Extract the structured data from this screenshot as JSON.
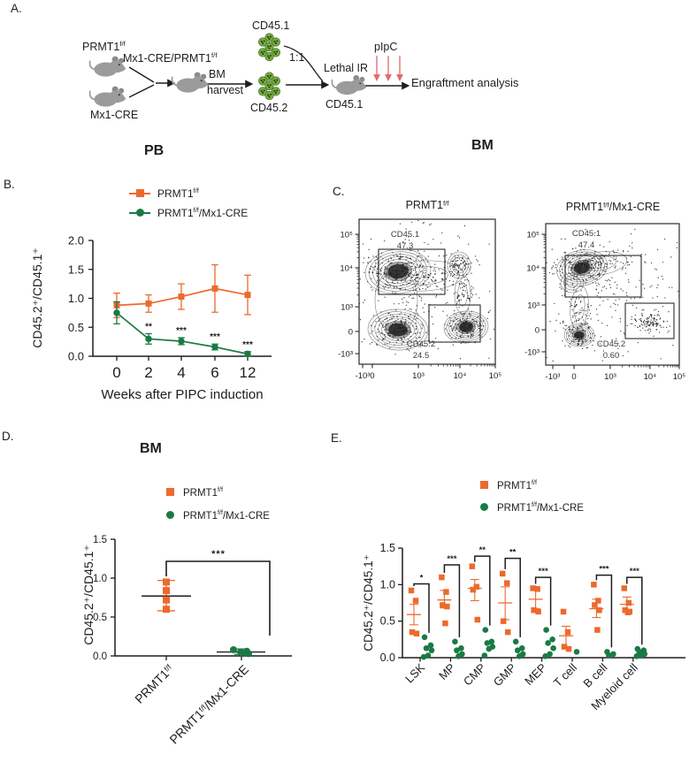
{
  "colors": {
    "orange": "#EB6A2D",
    "green": "#1A7A43",
    "arrow_red": "#DE6A6C",
    "mouse_gray": "#9B9B9B",
    "mouse_dark": "#8A8A8A",
    "cell_green": "#76AC41",
    "cell_outline": "#4C742B",
    "cell_dot": "#203B10",
    "text": "#1D1D1D"
  },
  "legend": {
    "group1": {
      "base": "PRMT1",
      "sup": "f/f",
      "rest": ""
    },
    "group2": {
      "base": "PRMT1",
      "sup": "f/f",
      "rest": "/Mx1-CRE"
    }
  },
  "panels": {
    "a": {
      "label": "A.",
      "donor_top": {
        "base": "PRMT1",
        "sup": "f/f"
      },
      "donor_bottom": "Mx1-CRE",
      "cross": {
        "base": "Mx1-CRE/PRMT1",
        "sup": "f/f"
      },
      "harvest_line1": "BM",
      "harvest_line2": "harvest",
      "cells_top": "CD45.1",
      "ratio": "1:1",
      "cells_bottom": "CD45.2",
      "irradiation": "Lethal IR",
      "recipient": "CD45.1",
      "induction": "pIpC",
      "endpoint": "Engraftment analysis"
    },
    "b": {
      "label": "B.",
      "title": "PB"
    },
    "c": {
      "label": "C.",
      "title": "BM"
    },
    "d": {
      "label": "D.",
      "title": "BM"
    },
    "e": {
      "label": "E."
    }
  },
  "chart_data": [
    {
      "id": "panel-b",
      "type": "line",
      "title": "PB",
      "xlabel": "Weeks after PIPC induction",
      "ylabel": "CD45.2⁺/CD45.1⁺",
      "categories": [
        "0",
        "2",
        "4",
        "6",
        "12"
      ],
      "ylim": [
        0,
        2.0
      ],
      "yticks": [
        "0.0",
        "0.5",
        "1.0",
        "1.5",
        "2.0"
      ],
      "legend_position": "top-left",
      "series": [
        {
          "legend_ref": "group1",
          "marker": "square",
          "color_key": "orange",
          "values": [
            0.88,
            0.91,
            1.03,
            1.17,
            1.06
          ],
          "errors": [
            0.21,
            0.15,
            0.22,
            0.41,
            0.34
          ],
          "sig": [
            "",
            "",
            "",
            "",
            ""
          ]
        },
        {
          "legend_ref": "group2",
          "marker": "circle",
          "color_key": "green",
          "values": [
            0.75,
            0.3,
            0.26,
            0.16,
            0.04
          ],
          "errors": [
            0.19,
            0.09,
            0.06,
            0.05,
            0.04
          ],
          "sig": [
            "",
            "**",
            "***",
            "***",
            "***"
          ]
        }
      ]
    },
    {
      "id": "panel-c",
      "type": "flow-contour",
      "title": "BM",
      "axis_ticks": {
        "x": [
          "-10³",
          "0",
          "10³",
          "10⁴",
          "10⁵"
        ],
        "y": [
          "-10³",
          "0",
          "10³",
          "10⁴",
          "10⁵"
        ]
      },
      "plots": [
        {
          "title_ref": "group1",
          "gates": [
            {
              "label": "CD45.1",
              "percent": "47.3"
            },
            {
              "label": "CD45.2",
              "percent": "24.5"
            }
          ]
        },
        {
          "title_ref": "group2",
          "gates": [
            {
              "label": "CD45.1",
              "percent": "47.4"
            },
            {
              "label": "CD45.2",
              "percent": "0.60"
            }
          ]
        }
      ]
    },
    {
      "id": "panel-d",
      "type": "scatter",
      "title": "BM",
      "ylabel": "CD45.2⁺/CD45.1⁺",
      "ylim": [
        0,
        1.5
      ],
      "yticks": [
        "0.0",
        "0.5",
        "1.0",
        "1.5"
      ],
      "groups": [
        {
          "legend_ref": "group1",
          "marker": "square",
          "color_key": "orange",
          "points": [
            0.95,
            0.84,
            0.72,
            0.6
          ],
          "mean": 0.77,
          "sd_low": 0.58,
          "sd_high": 0.97
        },
        {
          "legend_ref": "group2",
          "marker": "circle",
          "color_key": "green",
          "points": [
            0.08,
            0.06,
            0.05,
            0.03,
            0.04
          ],
          "mean": 0.05,
          "sd_low": 0.02,
          "sd_high": 0.09
        }
      ],
      "significance": {
        "label": "***"
      }
    },
    {
      "id": "panel-e",
      "type": "scatter",
      "ylabel": "CD45.2⁺/CD45.1⁺",
      "ylim": [
        0,
        1.5
      ],
      "yticks": [
        "0.0",
        "0.5",
        "1.0",
        "1.5"
      ],
      "categories": [
        "LSK",
        "MP",
        "CMP",
        "GMP",
        "MEP",
        "T cell",
        "B cell",
        "Myeloid cell"
      ],
      "series": [
        {
          "legend_ref": "group1",
          "marker": "square",
          "color_key": "orange",
          "points": [
            [
              0.92,
              0.78,
              0.35,
              0.33
            ],
            [
              1.1,
              0.9,
              0.72,
              0.7,
              0.47
            ],
            [
              1.25,
              0.97,
              0.93,
              0.52
            ],
            [
              1.15,
              1.02,
              0.5,
              0.35
            ],
            [
              0.95,
              0.94,
              0.65,
              0.63
            ],
            [
              0.63,
              0.35,
              0.15,
              0.12
            ],
            [
              1.0,
              0.78,
              0.72,
              0.65,
              0.38
            ],
            [
              0.95,
              0.75,
              0.65,
              0.63,
              0.62
            ]
          ],
          "means": [
            0.59,
            0.79,
            0.95,
            0.75,
            0.8,
            0.3,
            0.67,
            0.73
          ],
          "err_low": [
            0.45,
            0.68,
            0.78,
            0.52,
            0.67,
            0.15,
            0.55,
            0.62
          ],
          "err_high": [
            0.73,
            0.92,
            1.07,
            0.97,
            0.92,
            0.43,
            0.8,
            0.83
          ]
        },
        {
          "legend_ref": "group2",
          "marker": "circle",
          "color_key": "green",
          "points": [
            [
              0.28,
              0.17,
              0.13,
              0.1,
              0.03,
              0.01
            ],
            [
              0.22,
              0.13,
              0.1,
              0.05,
              0.02
            ],
            [
              0.38,
              0.22,
              0.2,
              0.15,
              0.12,
              0.03
            ],
            [
              0.22,
              0.13,
              0.1,
              0.05,
              0.02
            ],
            [
              0.38,
              0.25,
              0.2,
              0.13,
              0.05,
              0.02
            ],
            [
              0.08
            ],
            [
              0.08,
              0.05,
              0.03
            ],
            [
              0.12,
              0.1,
              0.08,
              0.05,
              0.03,
              0.02
            ]
          ]
        }
      ],
      "significance": [
        {
          "label": "*",
          "y": 1.01
        },
        {
          "label": "***",
          "y": 1.27
        },
        {
          "label": "**",
          "y": 1.39
        },
        {
          "label": "**",
          "y": 1.36
        },
        {
          "label": "***",
          "y": 1.1
        },
        null,
        {
          "label": "***",
          "y": 1.13
        },
        {
          "label": "***",
          "y": 1.1
        }
      ]
    }
  ]
}
